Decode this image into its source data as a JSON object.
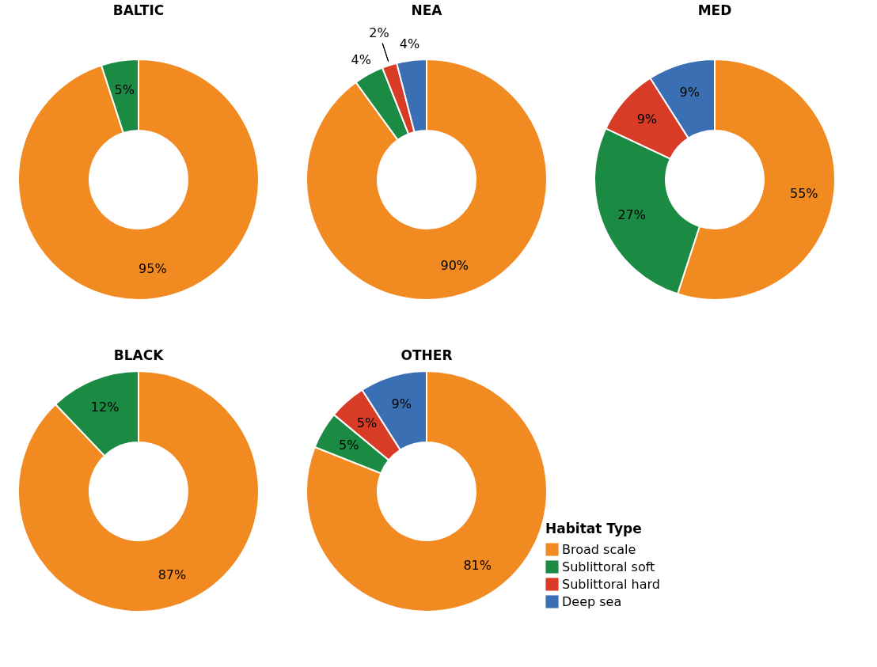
{
  "chart_data": [
    {
      "type": "donut",
      "title": "BALTIC",
      "categories": [
        null,
        null
      ],
      "values": [
        95,
        5
      ],
      "colors": [
        "#f08a21",
        "#1b8a43"
      ],
      "value_labels": [
        "95%",
        "5%"
      ]
    },
    {
      "type": "donut",
      "title": "NEA",
      "categories": [
        null,
        null,
        null,
        null
      ],
      "values": [
        90,
        4,
        2,
        4
      ],
      "colors": [
        "#f08a21",
        "#1b8a43",
        "#d83b26",
        "#3a6fb4"
      ],
      "value_labels": [
        "90%",
        "4%",
        "2%",
        "4%"
      ]
    },
    {
      "type": "donut",
      "title": "MED",
      "categories": [
        null,
        null,
        null,
        null
      ],
      "values": [
        55,
        27,
        9,
        9
      ],
      "colors": [
        "#f08a21",
        "#1b8a43",
        "#d83b26",
        "#3a6fb4"
      ],
      "value_labels": [
        "55%",
        "27%",
        "9%",
        "9%"
      ]
    },
    {
      "type": "donut",
      "title": "BLACK",
      "categories": [
        null,
        null
      ],
      "values": [
        87,
        12
      ],
      "colors": [
        "#f08a21",
        "#1b8a43"
      ],
      "value_labels": [
        "87%",
        "12%"
      ]
    },
    {
      "type": "donut",
      "title": "OTHER",
      "categories": [
        "Broad scale",
        "Sublittoral soft",
        "Sublittoral hard",
        "Deep sea"
      ],
      "values": [
        81,
        5,
        5,
        9
      ],
      "colors": [
        "#f08a21",
        "#1b8a43",
        "#d83b26",
        "#3a6fb4"
      ],
      "value_labels": [
        "81%",
        "5%",
        "5%",
        "9%"
      ],
      "legend_title": "Habitat Type",
      "legend": "bottom right"
    }
  ]
}
